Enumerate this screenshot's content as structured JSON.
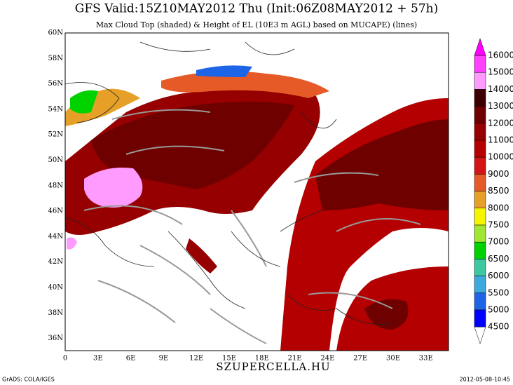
{
  "title": "GFS Valid:15Z10MAY2012 Thu (Init:06Z08MAY2012 + 57h)",
  "subtitle": "Max Cloud Top (shaded) & Height of EL (10E3 m AGL) based on MUCAPE) (lines)",
  "lat_labels": [
    "60N",
    "58N",
    "56N",
    "54N",
    "52N",
    "50N",
    "48N",
    "46N",
    "44N",
    "42N",
    "40N",
    "38N",
    "36N"
  ],
  "lon_labels": [
    "0",
    "3E",
    "6E",
    "9E",
    "12E",
    "15E",
    "18E",
    "21E",
    "24E",
    "27E",
    "30E",
    "33E"
  ],
  "colorbar": {
    "levels": [
      16000,
      15000,
      14000,
      13000,
      12000,
      11000,
      10000,
      9000,
      8500,
      8000,
      7500,
      7000,
      6500,
      6000,
      5500,
      5000,
      4500
    ],
    "colors": [
      "#ff40ff",
      "#ff9bff",
      "#3c0000",
      "#6e0000",
      "#960000",
      "#b40000",
      "#d21414",
      "#e65a28",
      "#e6a028",
      "#f5f500",
      "#a0e632",
      "#00d200",
      "#3cc8a0",
      "#3caadc",
      "#1e64e6",
      "#0000ff"
    ],
    "over_color": "#ff00ff",
    "under_color": "#ffffff"
  },
  "footer_left": "GrADS: COLA/IGES",
  "footer_center": "SZUPERCELLA.HU",
  "footer_right": "2012-05-08-10:45"
}
